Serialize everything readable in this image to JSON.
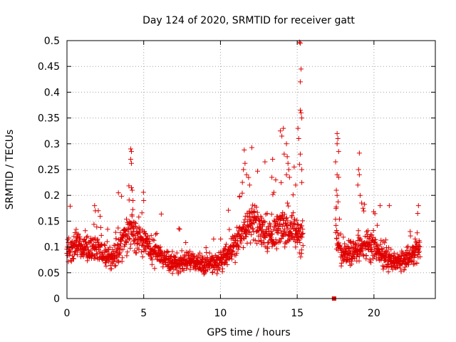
{
  "chart_data": {
    "type": "scatter",
    "title": "Day 124 of 2020, SRMTID for receiver gatt",
    "xlabel": "GPS time / hours",
    "ylabel": "SRMTID / TECUs",
    "xlim": [
      0,
      24
    ],
    "ylim": [
      0,
      0.5
    ],
    "xticks": [
      0,
      5,
      10,
      15,
      20
    ],
    "xtick_labels": [
      "0",
      "5",
      "10",
      "15",
      "20"
    ],
    "yticks": [
      0,
      0.05,
      0.1,
      0.15,
      0.2,
      0.25,
      0.3,
      0.35,
      0.4,
      0.45,
      0.5
    ],
    "ytick_labels": [
      "0",
      "0.05",
      "0.1",
      "0.15",
      "0.2",
      "0.25",
      "0.3",
      "0.35",
      "0.4",
      "0.45",
      "0.5"
    ],
    "grid": true,
    "marker": "+",
    "color": "#e00000",
    "series": [
      {
        "name": "SRMTID",
        "segments": [
          {
            "x_start": 0.0,
            "x_end": 15.4,
            "step": 0.025
          },
          {
            "x_start": 17.5,
            "x_end": 23.0,
            "step": 0.025
          }
        ],
        "trend": [
          [
            0.0,
            0.085
          ],
          [
            0.5,
            0.11
          ],
          [
            1.0,
            0.1
          ],
          [
            2.0,
            0.095
          ],
          [
            2.8,
            0.075
          ],
          [
            3.5,
            0.1
          ],
          [
            4.2,
            0.13
          ],
          [
            5.0,
            0.105
          ],
          [
            6.0,
            0.085
          ],
          [
            7.0,
            0.065
          ],
          [
            8.0,
            0.075
          ],
          [
            9.0,
            0.065
          ],
          [
            10.0,
            0.07
          ],
          [
            10.8,
            0.1
          ],
          [
            11.5,
            0.13
          ],
          [
            12.2,
            0.15
          ],
          [
            13.0,
            0.12
          ],
          [
            14.0,
            0.14
          ],
          [
            14.5,
            0.13
          ],
          [
            15.0,
            0.13
          ],
          [
            15.4,
            0.12
          ],
          [
            17.5,
            0.12
          ],
          [
            18.0,
            0.08
          ],
          [
            19.0,
            0.1
          ],
          [
            20.0,
            0.1
          ],
          [
            21.0,
            0.075
          ],
          [
            22.0,
            0.07
          ],
          [
            23.0,
            0.1
          ]
        ],
        "outliers": [
          [
            4.15,
            0.29
          ],
          [
            4.2,
            0.285
          ],
          [
            4.15,
            0.27
          ],
          [
            4.2,
            0.262
          ],
          [
            4.25,
            0.21
          ],
          [
            4.2,
            0.215
          ],
          [
            3.35,
            0.205
          ],
          [
            1.8,
            0.18
          ],
          [
            1.85,
            0.17
          ],
          [
            4.3,
            0.19
          ],
          [
            5.0,
            0.19
          ],
          [
            11.55,
            0.288
          ],
          [
            11.6,
            0.262
          ],
          [
            11.7,
            0.24
          ],
          [
            11.5,
            0.25
          ],
          [
            11.9,
            0.22
          ],
          [
            12.9,
            0.265
          ],
          [
            13.4,
            0.27
          ],
          [
            13.35,
            0.235
          ],
          [
            13.6,
            0.23
          ],
          [
            13.9,
            0.325
          ],
          [
            14.0,
            0.315
          ],
          [
            14.1,
            0.33
          ],
          [
            14.3,
            0.3
          ],
          [
            14.15,
            0.28
          ],
          [
            14.35,
            0.275
          ],
          [
            14.4,
            0.262
          ],
          [
            14.45,
            0.25
          ],
          [
            14.3,
            0.24
          ],
          [
            14.5,
            0.235
          ],
          [
            14.8,
            0.255
          ],
          [
            15.05,
            0.33
          ],
          [
            15.1,
            0.31
          ],
          [
            15.2,
            0.28
          ],
          [
            15.15,
            0.26
          ],
          [
            15.3,
            0.25
          ],
          [
            15.2,
            0.365
          ],
          [
            15.25,
            0.36
          ],
          [
            15.3,
            0.35
          ],
          [
            15.2,
            0.42
          ],
          [
            15.25,
            0.445
          ],
          [
            15.2,
            0.495
          ],
          [
            15.15,
            0.497
          ],
          [
            15.3,
            0.225
          ],
          [
            14.9,
            0.22
          ],
          [
            17.6,
            0.32
          ],
          [
            17.65,
            0.31
          ],
          [
            17.6,
            0.3
          ],
          [
            17.7,
            0.285
          ],
          [
            17.5,
            0.265
          ],
          [
            17.6,
            0.24
          ],
          [
            17.7,
            0.235
          ],
          [
            17.55,
            0.21
          ],
          [
            17.6,
            0.2
          ],
          [
            19.05,
            0.282
          ],
          [
            19.0,
            0.25
          ],
          [
            19.05,
            0.24
          ],
          [
            18.95,
            0.22
          ],
          [
            19.1,
            0.2
          ],
          [
            19.2,
            0.185
          ],
          [
            21.0,
            0.18
          ],
          [
            22.9,
            0.18
          ],
          [
            22.85,
            0.165
          ],
          [
            20.4,
            0.18
          ]
        ],
        "seed": 124
      }
    ],
    "annotations": [
      {
        "type": "marker-square",
        "x": 17.4,
        "y": 0.0
      }
    ]
  }
}
